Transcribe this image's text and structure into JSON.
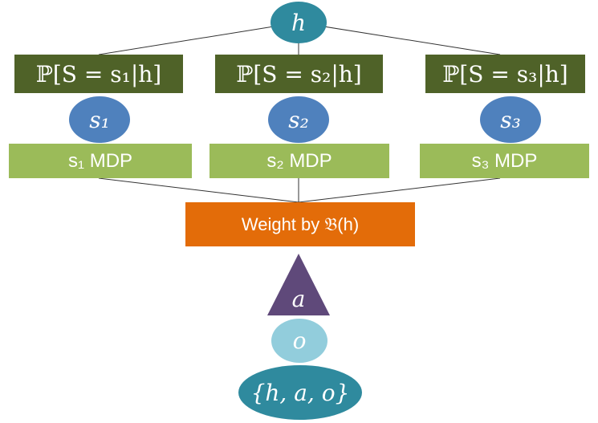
{
  "colors": {
    "teal": "#2f8a9e",
    "dark_green": "#4f6228",
    "light_green": "#9bbb59",
    "blue": "#4f81bd",
    "orange": "#e36c09",
    "purple": "#5f497a",
    "light_blue": "#92cddc",
    "line": "#333333"
  },
  "nodes": {
    "h": "h",
    "probs": [
      "ℙ[S = s₁|h]",
      "ℙ[S = s₂|h]",
      "ℙ[S = s₃|h]"
    ],
    "states": [
      "s₁",
      "s₂",
      "s₃"
    ],
    "mdps": [
      "s₁ MDP",
      "s₂ MDP",
      "s₃ MDP"
    ],
    "weight": "Weight by 𝔅(h)",
    "action": "a",
    "observation": "o",
    "history": "{h, a, o}"
  }
}
